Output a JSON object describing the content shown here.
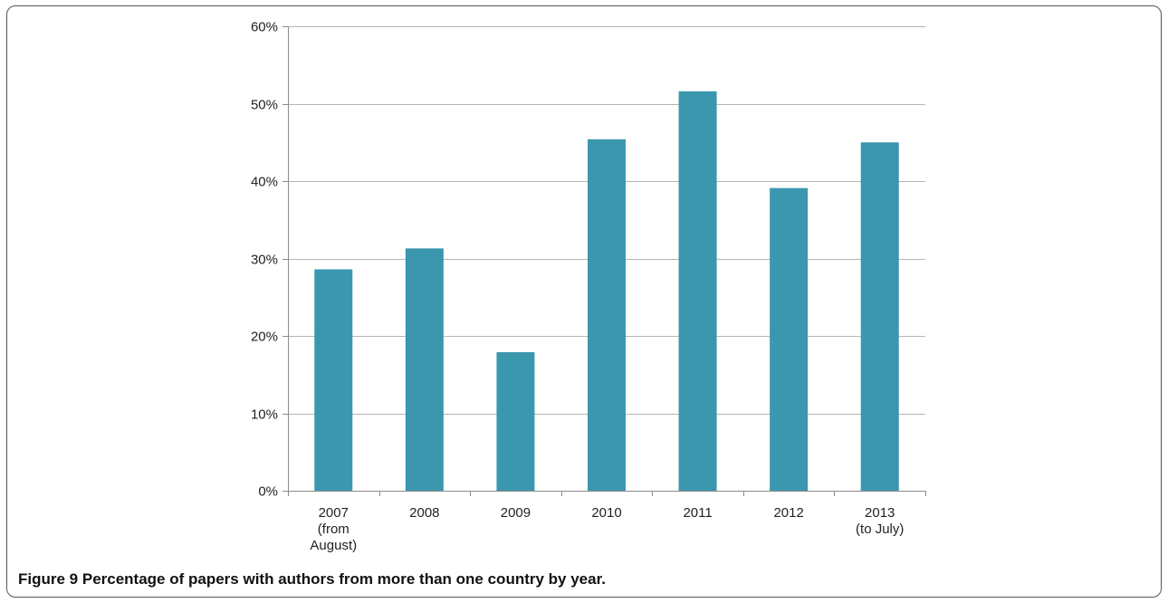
{
  "figure": {
    "label": "Figure 9",
    "caption": "Percentage of papers with authors from more than one country by year."
  },
  "colors": {
    "bar": "#3b97ad",
    "grid": "#b5b5b5",
    "axis": "#8c8c8c",
    "frame": "#555555"
  },
  "chart_data": {
    "type": "bar",
    "categories": [
      [
        "2007",
        "(from",
        "August)"
      ],
      [
        "2008"
      ],
      [
        "2009"
      ],
      [
        "2010"
      ],
      [
        "2011"
      ],
      [
        "2012"
      ],
      [
        "2013",
        "(to July)"
      ]
    ],
    "values": [
      28.6,
      31.3,
      17.9,
      45.4,
      51.6,
      39.1,
      45.0
    ],
    "ylim": [
      0,
      60
    ],
    "yticks": [
      0,
      10,
      20,
      30,
      40,
      50,
      60
    ],
    "ytick_labels": [
      "0%",
      "10%",
      "20%",
      "30%",
      "40%",
      "50%",
      "60%"
    ],
    "grid": true,
    "legend": "none",
    "title": "",
    "xlabel": "",
    "ylabel": ""
  }
}
